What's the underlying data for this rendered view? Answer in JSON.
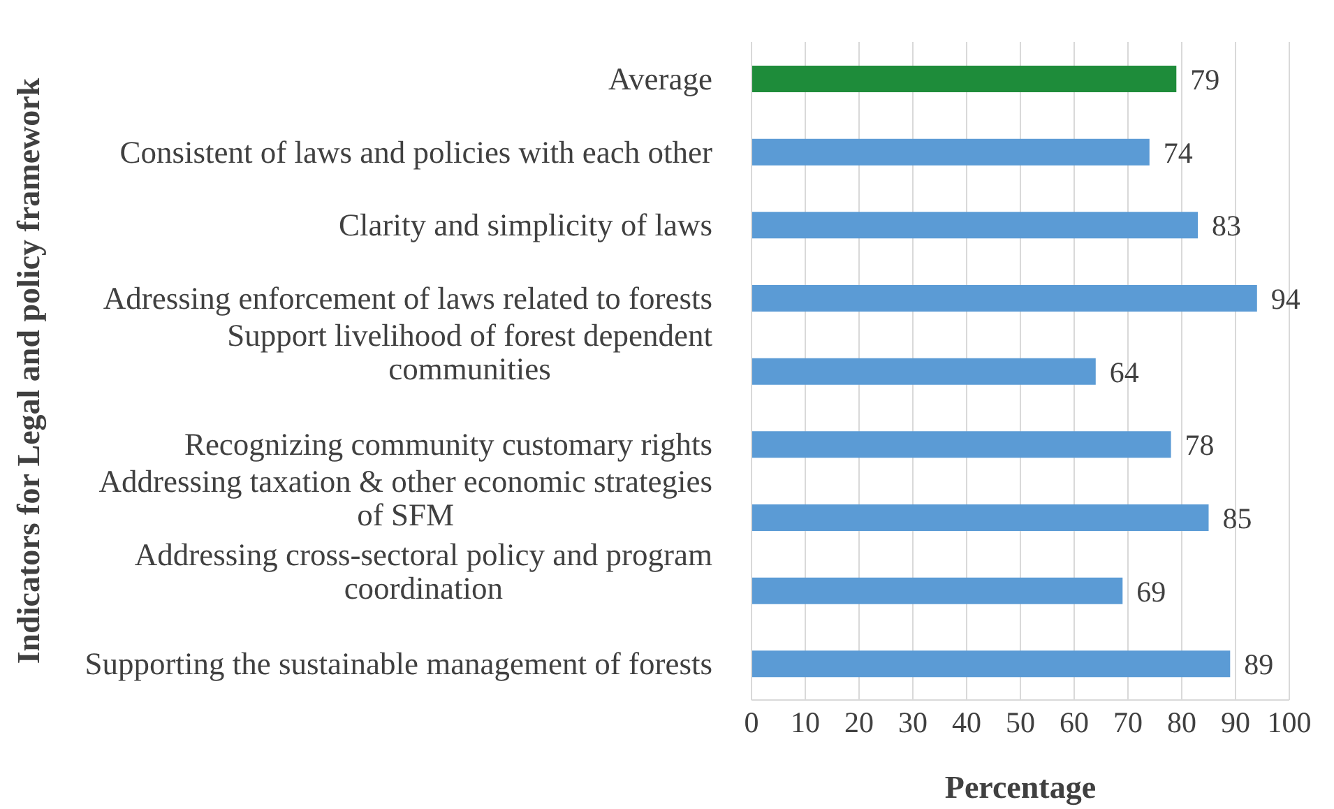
{
  "chart_data": {
    "type": "bar",
    "orientation": "horizontal",
    "xlabel": "Percentage",
    "ylabel": "Indicators for Legal and policy framework",
    "categories": [
      "Average",
      "Consistent of laws and policies with each other",
      "Clarity and simplicity of laws",
      "Adressing enforcement of laws related to forests",
      "Support livelihood of forest dependent communities",
      "Recognizing community customary rights",
      "Addressing taxation & other economic strategies of SFM",
      "Addressing cross-sectoral policy and program coordination",
      "Supporting the sustainable management of forests"
    ],
    "values": [
      79,
      74,
      83,
      94,
      64,
      78,
      85,
      69,
      89
    ],
    "colors": [
      "#1e8c3a",
      "#5b9bd5",
      "#5b9bd5",
      "#5b9bd5",
      "#5b9bd5",
      "#5b9bd5",
      "#5b9bd5",
      "#5b9bd5",
      "#5b9bd5"
    ],
    "xlim": [
      0,
      100
    ],
    "xticks": [
      0,
      10,
      20,
      30,
      40,
      50,
      60,
      70,
      80,
      90,
      100
    ],
    "grid": "x",
    "data_labels": true
  }
}
